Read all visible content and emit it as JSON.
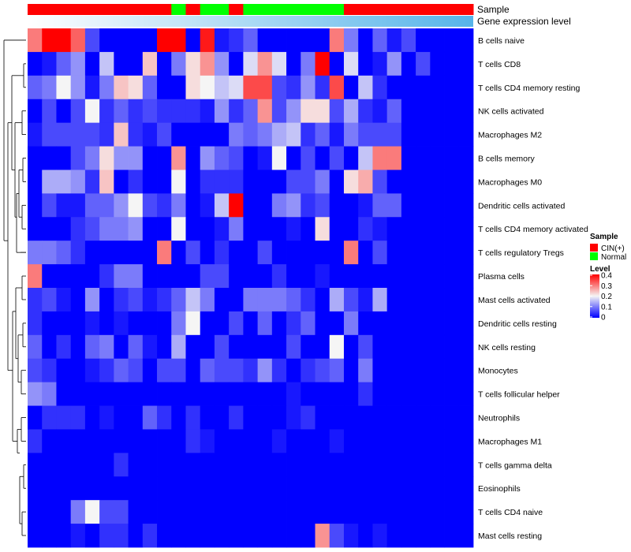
{
  "chart_data": {
    "type": "heatmap",
    "track_labels": {
      "sample": "Sample",
      "expression": "Gene expression level"
    },
    "sample_groups": [
      "CIN",
      "CIN",
      "CIN",
      "CIN",
      "CIN",
      "CIN",
      "CIN",
      "CIN",
      "CIN",
      "CIN",
      "Normal",
      "CIN",
      "Normal",
      "Normal",
      "CIN",
      "Normal",
      "Normal",
      "Normal",
      "Normal",
      "Normal",
      "Normal",
      "Normal",
      "CIN",
      "CIN",
      "CIN",
      "CIN",
      "CIN",
      "CIN",
      "CIN",
      "CIN",
      "CIN"
    ],
    "rows": [
      "B cells naive",
      "T cells CD8",
      "T cells CD4 memory resting",
      "NK cells activated",
      "Macrophages M2",
      "B cells memory",
      "Macrophages M0",
      "Dendritic cells activated",
      "T cells CD4 memory activated",
      "T cells regulatory  Tregs",
      "Plasma cells",
      "Mast cells activated",
      "Dendritic cells resting",
      "NK cells resting",
      "Monocytes",
      "T cells follicular helper",
      "Neutrophils",
      "Macrophages M1",
      "T cells gamma delta",
      "Eosinophils",
      "T cells CD4 naive",
      "Mast cells resting"
    ],
    "values": [
      [
        0.3,
        0.4,
        0.4,
        0.32,
        0.06,
        0.0,
        0.0,
        0.0,
        0.0,
        0.4,
        0.4,
        0.0,
        0.38,
        0.02,
        0.04,
        0.08,
        0.0,
        0.0,
        0.0,
        0.0,
        0.0,
        0.3,
        0.1,
        0.0,
        0.08,
        0.02,
        0.06,
        0.0,
        0.0,
        0.0,
        0.0
      ],
      [
        0.0,
        0.02,
        0.08,
        0.12,
        0.0,
        0.16,
        0.0,
        0.0,
        0.24,
        0.0,
        0.1,
        0.22,
        0.28,
        0.12,
        0.0,
        0.18,
        0.28,
        0.18,
        0.0,
        0.1,
        0.4,
        0.0,
        0.18,
        0.0,
        0.02,
        0.12,
        0.0,
        0.06,
        0.0,
        0.0,
        0.0
      ],
      [
        0.08,
        0.1,
        0.2,
        0.12,
        0.02,
        0.1,
        0.24,
        0.22,
        0.08,
        0.0,
        0.0,
        0.22,
        0.2,
        0.16,
        0.18,
        0.34,
        0.34,
        0.06,
        0.04,
        0.12,
        0.04,
        0.34,
        0.0,
        0.16,
        0.04,
        0.0,
        0.0,
        0.0,
        0.0,
        0.0,
        0.0
      ],
      [
        0.0,
        0.06,
        0.0,
        0.06,
        0.2,
        0.04,
        0.08,
        0.04,
        0.06,
        0.04,
        0.04,
        0.04,
        0.02,
        0.12,
        0.04,
        0.08,
        0.28,
        0.06,
        0.12,
        0.22,
        0.22,
        0.06,
        0.14,
        0.04,
        0.02,
        0.08,
        0.0,
        0.0,
        0.0,
        0.0,
        0.0
      ],
      [
        0.02,
        0.06,
        0.06,
        0.06,
        0.06,
        0.04,
        0.24,
        0.04,
        0.02,
        0.06,
        0.0,
        0.0,
        0.0,
        0.0,
        0.1,
        0.08,
        0.1,
        0.14,
        0.16,
        0.04,
        0.08,
        0.02,
        0.1,
        0.06,
        0.06,
        0.06,
        0.0,
        0.0,
        0.0,
        0.0,
        0.0
      ],
      [
        0.0,
        0.0,
        0.0,
        0.06,
        0.1,
        0.22,
        0.12,
        0.12,
        0.0,
        0.0,
        0.28,
        0.0,
        0.12,
        0.08,
        0.06,
        0.0,
        0.02,
        0.2,
        0.0,
        0.06,
        0.0,
        0.06,
        0.0,
        0.16,
        0.3,
        0.3,
        0.0,
        0.0,
        0.0,
        0.0,
        0.0
      ],
      [
        0.0,
        0.14,
        0.14,
        0.12,
        0.04,
        0.24,
        0.0,
        0.04,
        0.0,
        0.0,
        0.2,
        0.0,
        0.04,
        0.04,
        0.04,
        0.0,
        0.0,
        0.0,
        0.06,
        0.06,
        0.1,
        0.0,
        0.22,
        0.26,
        0.06,
        0.0,
        0.0,
        0.0,
        0.0,
        0.0,
        0.0
      ],
      [
        0.0,
        0.06,
        0.02,
        0.02,
        0.08,
        0.08,
        0.12,
        0.2,
        0.06,
        0.04,
        0.1,
        0.0,
        0.02,
        0.16,
        0.4,
        0.0,
        0.0,
        0.1,
        0.12,
        0.04,
        0.06,
        0.0,
        0.0,
        0.02,
        0.08,
        0.08,
        0.0,
        0.0,
        0.0,
        0.0,
        0.0
      ],
      [
        0.0,
        0.0,
        0.0,
        0.04,
        0.06,
        0.1,
        0.1,
        0.12,
        0.0,
        0.0,
        0.2,
        0.0,
        0.0,
        0.02,
        0.1,
        0.0,
        0.0,
        0.0,
        0.02,
        0.0,
        0.22,
        0.0,
        0.0,
        0.04,
        0.02,
        0.0,
        0.0,
        0.0,
        0.0,
        0.0,
        0.0
      ],
      [
        0.1,
        0.1,
        0.08,
        0.04,
        0.0,
        0.0,
        0.0,
        0.0,
        0.0,
        0.3,
        0.0,
        0.06,
        0.0,
        0.04,
        0.0,
        0.0,
        0.06,
        0.0,
        0.0,
        0.0,
        0.0,
        0.0,
        0.3,
        0.0,
        0.06,
        0.0,
        0.0,
        0.0,
        0.0,
        0.0,
        0.0
      ],
      [
        0.3,
        0.0,
        0.0,
        0.0,
        0.0,
        0.04,
        0.1,
        0.1,
        0.0,
        0.0,
        0.0,
        0.0,
        0.06,
        0.06,
        0.0,
        0.0,
        0.0,
        0.04,
        0.0,
        0.0,
        0.02,
        0.0,
        0.0,
        0.0,
        0.0,
        0.0,
        0.0,
        0.0,
        0.0,
        0.0,
        0.0
      ],
      [
        0.04,
        0.06,
        0.02,
        0.0,
        0.12,
        0.0,
        0.04,
        0.06,
        0.02,
        0.04,
        0.08,
        0.16,
        0.1,
        0.0,
        0.0,
        0.1,
        0.1,
        0.1,
        0.08,
        0.04,
        0.0,
        0.14,
        0.06,
        0.02,
        0.14,
        0.0,
        0.0,
        0.0,
        0.0,
        0.0,
        0.0
      ],
      [
        0.04,
        0.0,
        0.0,
        0.0,
        0.02,
        0.0,
        0.02,
        0.0,
        0.0,
        0.0,
        0.1,
        0.2,
        0.0,
        0.0,
        0.06,
        0.0,
        0.08,
        0.0,
        0.04,
        0.08,
        0.0,
        0.0,
        0.1,
        0.0,
        0.0,
        0.0,
        0.0,
        0.0,
        0.0,
        0.0,
        0.0
      ],
      [
        0.08,
        0.0,
        0.04,
        0.0,
        0.08,
        0.1,
        0.0,
        0.08,
        0.02,
        0.0,
        0.14,
        0.0,
        0.0,
        0.06,
        0.0,
        0.0,
        0.0,
        0.0,
        0.06,
        0.0,
        0.0,
        0.2,
        0.0,
        0.06,
        0.0,
        0.0,
        0.0,
        0.0,
        0.0,
        0.0,
        0.0
      ],
      [
        0.06,
        0.04,
        0.0,
        0.0,
        0.02,
        0.04,
        0.08,
        0.06,
        0.0,
        0.06,
        0.06,
        0.0,
        0.08,
        0.06,
        0.06,
        0.04,
        0.12,
        0.04,
        0.0,
        0.04,
        0.06,
        0.08,
        0.0,
        0.1,
        0.0,
        0.0,
        0.0,
        0.0,
        0.0,
        0.0,
        0.0
      ],
      [
        0.12,
        0.1,
        0.0,
        0.0,
        0.0,
        0.0,
        0.0,
        0.0,
        0.0,
        0.0,
        0.0,
        0.0,
        0.0,
        0.0,
        0.0,
        0.0,
        0.0,
        0.0,
        0.02,
        0.0,
        0.0,
        0.0,
        0.0,
        0.04,
        0.0,
        0.0,
        0.0,
        0.0,
        0.0,
        0.0,
        0.0
      ],
      [
        0.0,
        0.04,
        0.04,
        0.04,
        0.0,
        0.02,
        0.0,
        0.0,
        0.08,
        0.04,
        0.0,
        0.04,
        0.0,
        0.0,
        0.04,
        0.0,
        0.0,
        0.0,
        0.02,
        0.04,
        0.0,
        0.0,
        0.0,
        0.0,
        0.0,
        0.0,
        0.0,
        0.0,
        0.0,
        0.0,
        0.0
      ],
      [
        0.04,
        0.0,
        0.0,
        0.0,
        0.0,
        0.0,
        0.0,
        0.0,
        0.0,
        0.0,
        0.0,
        0.04,
        0.02,
        0.0,
        0.0,
        0.0,
        0.0,
        0.02,
        0.0,
        0.0,
        0.0,
        0.02,
        0.0,
        0.0,
        0.0,
        0.0,
        0.0,
        0.0,
        0.0,
        0.0,
        0.0
      ],
      [
        0.0,
        0.0,
        0.0,
        0.0,
        0.0,
        0.0,
        0.04,
        0.0,
        0.0,
        0.0,
        0.0,
        0.0,
        0.0,
        0.0,
        0.0,
        0.0,
        0.0,
        0.0,
        0.0,
        0.0,
        0.0,
        0.0,
        0.0,
        0.0,
        0.0,
        0.0,
        0.0,
        0.0,
        0.0,
        0.0,
        0.0
      ],
      [
        0.0,
        0.0,
        0.0,
        0.0,
        0.0,
        0.0,
        0.0,
        0.0,
        0.0,
        0.0,
        0.0,
        0.0,
        0.0,
        0.0,
        0.0,
        0.0,
        0.0,
        0.0,
        0.0,
        0.0,
        0.0,
        0.0,
        0.0,
        0.0,
        0.0,
        0.0,
        0.0,
        0.0,
        0.0,
        0.0,
        0.0
      ],
      [
        0.0,
        0.0,
        0.0,
        0.1,
        0.2,
        0.06,
        0.06,
        0.0,
        0.0,
        0.0,
        0.0,
        0.0,
        0.0,
        0.0,
        0.0,
        0.0,
        0.0,
        0.0,
        0.0,
        0.0,
        0.0,
        0.0,
        0.0,
        0.0,
        0.0,
        0.0,
        0.0,
        0.0,
        0.0,
        0.0,
        0.0
      ],
      [
        0.0,
        0.0,
        0.0,
        0.02,
        0.0,
        0.04,
        0.04,
        0.0,
        0.04,
        0.0,
        0.0,
        0.0,
        0.0,
        0.0,
        0.0,
        0.0,
        0.0,
        0.0,
        0.0,
        0.0,
        0.28,
        0.06,
        0.02,
        0.0,
        0.02,
        0.0,
        0.0,
        0.0,
        0.0,
        0.0,
        0.0
      ]
    ],
    "legend": {
      "sample": {
        "title": "Sample",
        "entries": [
          {
            "label": "CIN(+)",
            "color": "#ff0000"
          },
          {
            "label": "Normal",
            "color": "#00ff00"
          }
        ]
      },
      "level": {
        "title": "Level",
        "ticks": [
          "0.4",
          "0.3",
          "0.2",
          "0.1",
          "0"
        ],
        "range": [
          0,
          0.4
        ]
      }
    },
    "color_scale": {
      "low": "#0000ff",
      "mid": "#f5f5f5",
      "high": "#ff0000"
    },
    "expression_gradient": {
      "start": "#ffffff",
      "end": "#56b4e9"
    }
  }
}
